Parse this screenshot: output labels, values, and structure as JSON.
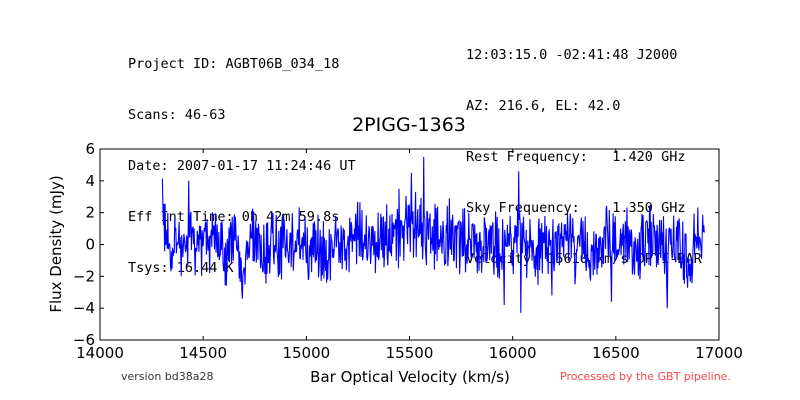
{
  "header": {
    "left": [
      "Project ID: AGBT06B_034_18",
      "Scans: 46-63",
      "Date: 2007-01-17 11:24:46 UT",
      "Eff Int Time: 0h 42m 59.8s",
      "Tsys: 16.44 K"
    ],
    "right": [
      "12:03:15.0 -02:41:48 J2000",
      "AZ: 216.6, EL: 42.0",
      "Rest Frequency:   1.420 GHz",
      "Sky Frequency:    1.350 GHz",
      "Velocity: 15610 km/s OPTI-BAR"
    ]
  },
  "footer": {
    "version": "version bd38a28",
    "processed": "Processed by the GBT pipeline.",
    "processed_color": "#ff4444"
  },
  "chart_data": {
    "type": "line",
    "title": "2PIGG-1363",
    "xlabel": "Bar Optical Velocity (km/s)",
    "ylabel": "Flux Density (mJy)",
    "xlim": [
      14000,
      17000
    ],
    "ylim": [
      -6,
      6
    ],
    "xticks": [
      "14000",
      "14500",
      "15000",
      "15500",
      "16000",
      "16500",
      "17000"
    ],
    "yticks": [
      "6",
      "4",
      "2",
      "0",
      "−2",
      "−4",
      "−6"
    ],
    "grid": false,
    "series": [
      {
        "color": "#0000ff",
        "x_start": 14300,
        "x_end": 16930,
        "x": [
          14300,
          14350,
          14400,
          14450,
          14500,
          14550,
          14600,
          14650,
          14700,
          14750,
          14800,
          14850,
          14900,
          14950,
          15000,
          15050,
          15100,
          15150,
          15200,
          15250,
          15300,
          15350,
          15400,
          15450,
          15500,
          15550,
          15600,
          15650,
          15700,
          15750,
          15800,
          15850,
          15900,
          15950,
          16000,
          16050,
          16100,
          16150,
          16200,
          16250,
          16300,
          16350,
          16400,
          16450,
          16500,
          16550,
          16600,
          16650,
          16700,
          16750,
          16800,
          16850,
          16900,
          16930
        ],
        "values": [
          4.1,
          0.2,
          -1.0,
          0.6,
          -0.4,
          0.8,
          -1.2,
          0.3,
          -2.0,
          0.9,
          -1.5,
          0.5,
          -0.7,
          1.1,
          -0.3,
          0.4,
          -1.6,
          0.6,
          -0.9,
          1.4,
          -0.2,
          0.8,
          1.2,
          0.5,
          2.6,
          1.8,
          1.1,
          0.4,
          1.6,
          0.2,
          1.0,
          -0.5,
          0.7,
          -0.8,
          0.2,
          0.9,
          -1.7,
          0.4,
          -0.6,
          1.3,
          -0.9,
          0.1,
          -1.1,
          0.8,
          -0.4,
          0.6,
          -0.8,
          1.0,
          -0.2,
          -0.9,
          0.5,
          -1.3,
          0.7,
          1.6
        ],
        "peaks": [
          {
            "x": 14430,
            "y": 4.0
          },
          {
            "x": 14690,
            "y": -3.4
          },
          {
            "x": 15450,
            "y": 3.5
          },
          {
            "x": 15510,
            "y": 4.5
          },
          {
            "x": 15570,
            "y": 5.5
          },
          {
            "x": 15960,
            "y": -3.8
          },
          {
            "x": 16030,
            "y": 4.6
          },
          {
            "x": 16040,
            "y": -4.3
          },
          {
            "x": 16190,
            "y": -3.2
          },
          {
            "x": 16480,
            "y": -3.6
          },
          {
            "x": 16750,
            "y": -4.0
          }
        ]
      }
    ]
  }
}
